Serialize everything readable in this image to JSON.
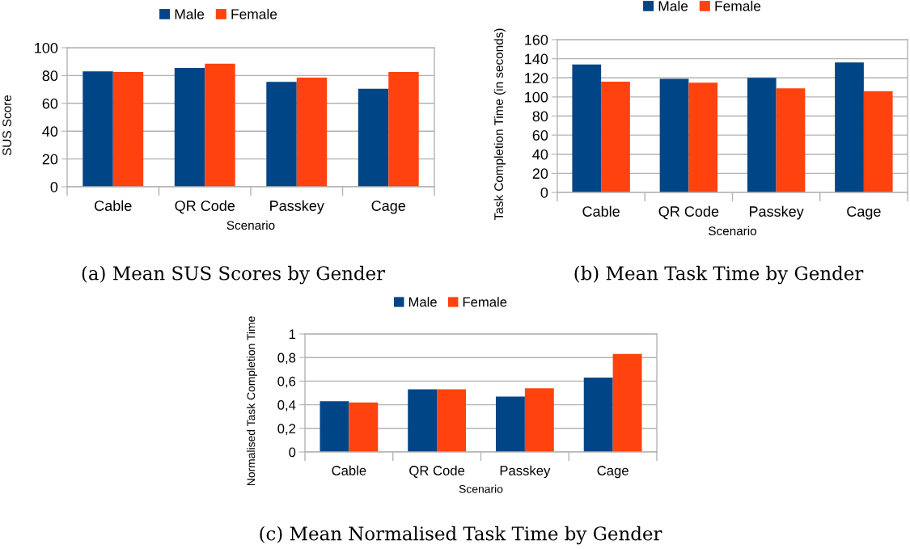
{
  "chart_data": [
    {
      "type": "bar",
      "xlabel": "Scenario",
      "ylabel": "SUS Score",
      "categories": [
        "Cable",
        "QR Code",
        "Passkey",
        "Cage"
      ],
      "series": [
        {
          "name": "Male",
          "color": "#004586",
          "values": [
            83,
            85.5,
            75.5,
            70.5
          ]
        },
        {
          "name": "Female",
          "color": "#ff420e",
          "values": [
            82.5,
            88.5,
            78.5,
            82.5
          ]
        }
      ],
      "ylim": [
        0,
        100
      ],
      "yticks": [
        0,
        20,
        40,
        60,
        80,
        100
      ],
      "grid": "y",
      "legend": "top",
      "annotations": [
        "(a) Mean SUS Scores by Gender"
      ]
    },
    {
      "type": "bar",
      "xlabel": "Scenario",
      "ylabel": "Task Completion Time (in seconds)",
      "categories": [
        "Cable",
        "QR Code",
        "Passkey",
        "Cage"
      ],
      "series": [
        {
          "name": "Male",
          "color": "#004586",
          "values": [
            134,
            119,
            120,
            136
          ]
        },
        {
          "name": "Female",
          "color": "#ff420e",
          "values": [
            116,
            115,
            109,
            106
          ]
        }
      ],
      "ylim": [
        0,
        160
      ],
      "yticks": [
        0,
        20,
        40,
        60,
        80,
        100,
        120,
        140,
        160
      ],
      "grid": "y",
      "legend": "top",
      "annotations": [
        "(b) Mean Task Time by Gender"
      ]
    },
    {
      "type": "bar",
      "xlabel": "Scenario",
      "ylabel": "Normalised Task Completion Time",
      "categories": [
        "Cable",
        "QR Code",
        "Passkey",
        "Cage"
      ],
      "series": [
        {
          "name": "Male",
          "color": "#004586",
          "values": [
            0.43,
            0.53,
            0.47,
            0.63
          ]
        },
        {
          "name": "Female",
          "color": "#ff420e",
          "values": [
            0.42,
            0.53,
            0.54,
            0.83
          ]
        }
      ],
      "ylim": [
        0,
        1
      ],
      "yticks": [
        0,
        {
          "value": 0.2,
          "label": "0,2"
        },
        {
          "value": 0.4,
          "label": "0,4"
        },
        {
          "value": 0.6,
          "label": "0,6"
        },
        {
          "value": 0.8,
          "label": "0,8"
        },
        1
      ],
      "grid": "y",
      "legend": "top",
      "annotations": [
        "(c) Mean Normalised Task Time by Gender"
      ]
    }
  ]
}
